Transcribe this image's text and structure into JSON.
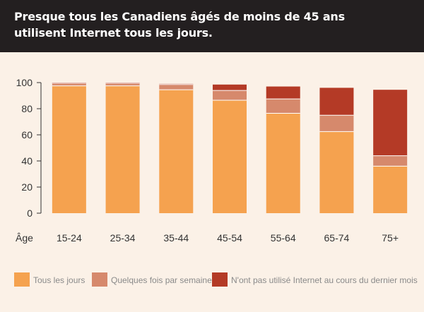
{
  "header": {
    "title_line1": "Presque tous les Canadiens âgés de moins de 45 ans",
    "title_line2": "utilisent Internet tous les jours."
  },
  "colors": {
    "header_bg": "#231f20",
    "panel_bg": "#fbf1e7",
    "daily": "#f5a24f",
    "weekly": "#d6896c",
    "not_used": "#b43a26"
  },
  "chart_data": {
    "type": "bar",
    "stacked": true,
    "xlabel": "Âge",
    "categories": [
      "15-24",
      "25-34",
      "35-44",
      "45-54",
      "55-64",
      "65-74",
      "75+"
    ],
    "series": [
      {
        "name": "Tous les jours",
        "color": "#f5a24f",
        "values": [
          97.5,
          97.5,
          94.5,
          86.5,
          76.5,
          62.5,
          36
        ]
      },
      {
        "name": "Quelques fois par semaine",
        "color": "#d6896c",
        "values": [
          2,
          2,
          4,
          7.5,
          11,
          12.5,
          8
        ]
      },
      {
        "name": "N'ont pas utilisé Internet au cours du dernier mois",
        "color": "#b43a26",
        "values": [
          0.5,
          0.5,
          0.5,
          4.5,
          9.5,
          21,
          50.5
        ]
      }
    ],
    "ylim": [
      0,
      100
    ],
    "yticks": [
      0,
      20,
      40,
      60,
      80,
      100
    ],
    "grid": false,
    "legend_position": "bottom"
  }
}
